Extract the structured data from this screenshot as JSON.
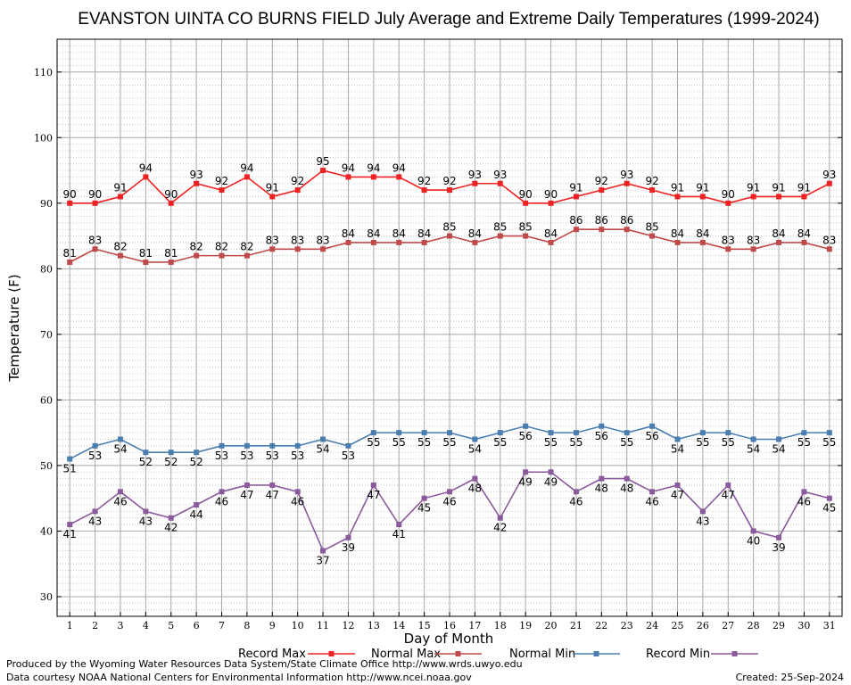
{
  "chart_data": {
    "type": "line",
    "title": "EVANSTON UINTA CO BURNS FIELD July Average and Extreme Daily Temperatures (1999-2024)",
    "xlabel": "Day of Month",
    "ylabel": "Temperature (F)",
    "xlim": [
      0.5,
      31.5
    ],
    "ylim": [
      27,
      115
    ],
    "yticks": [
      30,
      40,
      50,
      60,
      70,
      80,
      90,
      100,
      110
    ],
    "x": [
      1,
      2,
      3,
      4,
      5,
      6,
      7,
      8,
      9,
      10,
      11,
      12,
      13,
      14,
      15,
      16,
      17,
      18,
      19,
      20,
      21,
      22,
      23,
      24,
      25,
      26,
      27,
      28,
      29,
      30,
      31
    ],
    "grid": true,
    "legend_position": "bottom",
    "series": [
      {
        "name": "Record Max",
        "color": "#ee2222",
        "label_pos": "above",
        "values": [
          90,
          90,
          91,
          94,
          90,
          93,
          92,
          94,
          91,
          92,
          95,
          94,
          94,
          94,
          92,
          92,
          93,
          93,
          90,
          90,
          91,
          92,
          93,
          92,
          91,
          91,
          90,
          91,
          91,
          91,
          93
        ]
      },
      {
        "name": "Normal Max",
        "color": "#c04a4a",
        "label_pos": "above",
        "values": [
          81,
          83,
          82,
          81,
          81,
          82,
          82,
          82,
          83,
          83,
          83,
          84,
          84,
          84,
          84,
          85,
          84,
          85,
          85,
          84,
          86,
          86,
          86,
          85,
          84,
          84,
          83,
          83,
          84,
          84,
          83
        ]
      },
      {
        "name": "Normal Min",
        "color": "#4a7eb0",
        "label_pos": "below",
        "values": [
          51,
          53,
          54,
          52,
          52,
          52,
          53,
          53,
          53,
          53,
          54,
          53,
          55,
          55,
          55,
          55,
          54,
          55,
          56,
          55,
          55,
          56,
          55,
          56,
          54,
          55,
          55,
          54,
          54,
          55,
          55
        ]
      },
      {
        "name": "Record Min",
        "color": "#8a5a9c",
        "label_pos": "below",
        "values": [
          41,
          43,
          46,
          43,
          42,
          44,
          46,
          47,
          47,
          46,
          37,
          39,
          47,
          41,
          45,
          46,
          48,
          42,
          49,
          49,
          46,
          48,
          48,
          46,
          47,
          43,
          47,
          40,
          39,
          46,
          45
        ]
      }
    ]
  },
  "footer": {
    "line1": "Produced by the Wyoming Water Resources Data System/State Climate Office http://www.wrds.uwyo.edu",
    "line2": "Data courtesy NOAA National Centers for Environmental Information http://www.ncei.noaa.gov",
    "created": "Created:  25-Sep-2024"
  }
}
